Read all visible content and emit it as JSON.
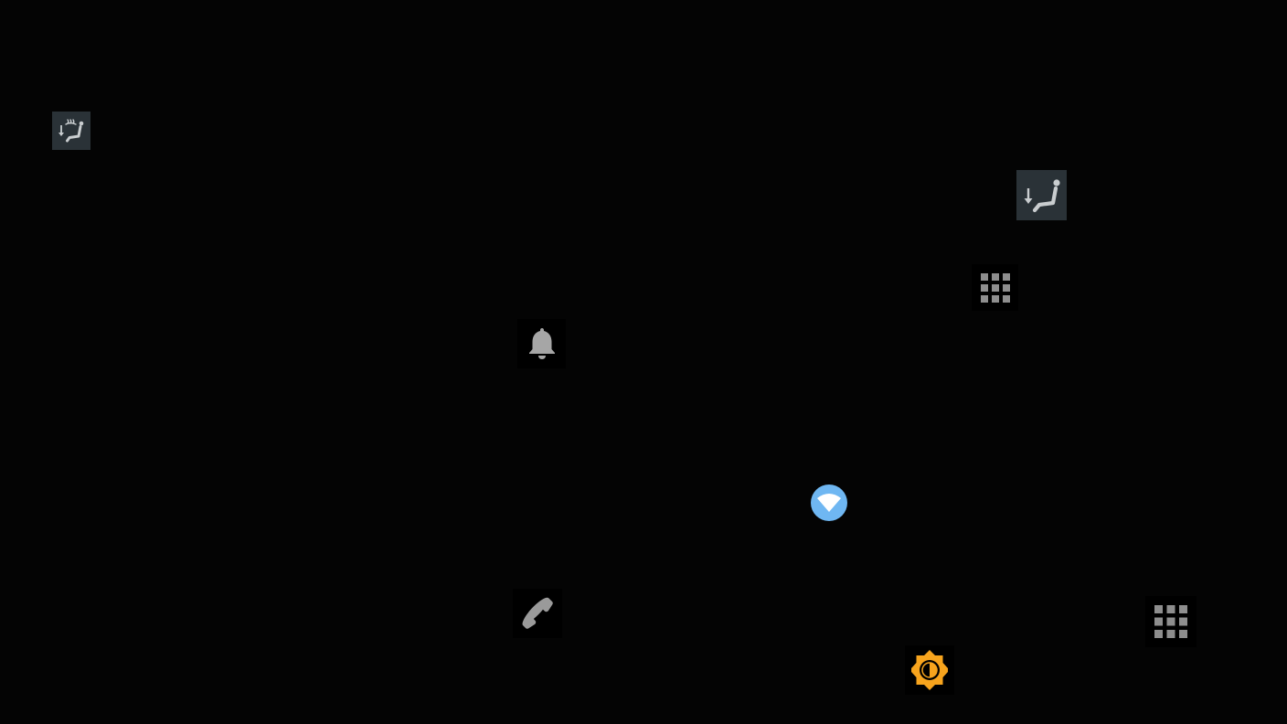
{
  "screen": {
    "background": "#040404"
  },
  "controls": [
    {
      "id": "seat-heat-button",
      "icon": "heated-seat-icon",
      "color": "#c9cdcf",
      "tile": "#2a3237"
    },
    {
      "id": "seat-recline-button",
      "icon": "seat-recline-icon",
      "color": "#c9cdcf",
      "tile": "#2a3237"
    },
    {
      "id": "apps-grid-button-top",
      "icon": "app-grid-icon",
      "color": "#8e8e8e",
      "tile": "#000000"
    },
    {
      "id": "notifications-button",
      "icon": "bell-icon",
      "color": "#a6a6a6",
      "tile": "#000000"
    },
    {
      "id": "wifi-button",
      "icon": "wifi-icon",
      "color": "#6fb7f2",
      "tile": "#040404"
    },
    {
      "id": "phone-button",
      "icon": "phone-icon",
      "color": "#9a9a9a",
      "tile": "#000000"
    },
    {
      "id": "apps-grid-button-bottom",
      "icon": "app-grid-icon",
      "color": "#8e8e8e",
      "tile": "#000000"
    },
    {
      "id": "brightness-button",
      "icon": "brightness-icon",
      "color": "#f7a41d",
      "tile": "#000000"
    }
  ]
}
